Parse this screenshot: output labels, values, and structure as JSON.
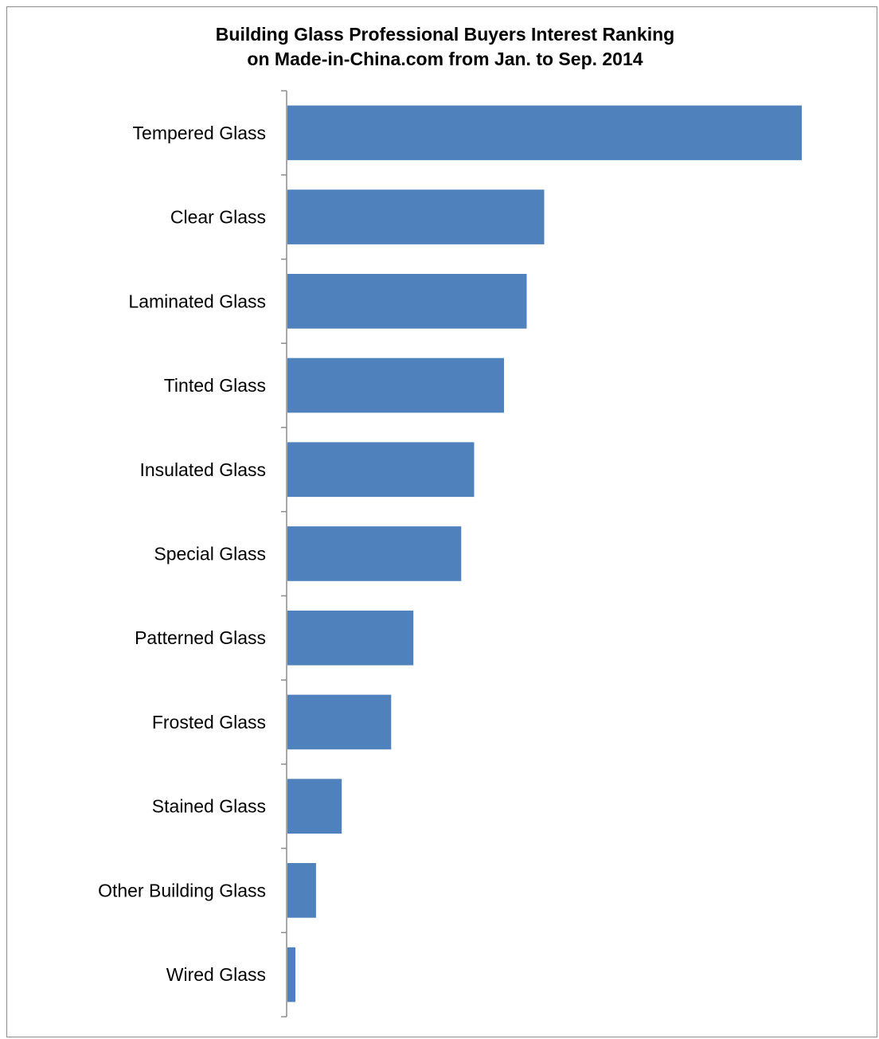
{
  "chart_data": {
    "type": "bar",
    "orientation": "horizontal",
    "title_lines": [
      "Building Glass Professional Buyers Interest Ranking",
      "on Made-in-China.com from Jan. to Sep. 2014"
    ],
    "categories": [
      "Tempered Glass",
      "Clear Glass",
      "Laminated Glass",
      "Tinted Glass",
      "Insulated Glass",
      "Special Glass",
      "Patterned Glass",
      "Frosted Glass",
      "Stained Glass",
      "Other Building Glass",
      "Wired Glass"
    ],
    "values": [
      100,
      50,
      46.6,
      42.2,
      36.4,
      33.9,
      24.6,
      20.3,
      10.7,
      5.7,
      1.7
    ],
    "xlim": [
      0,
      100
    ],
    "grid": false,
    "legend": "none",
    "bar_color": "#4f81bd",
    "axis_color": "#8c8c8c"
  }
}
